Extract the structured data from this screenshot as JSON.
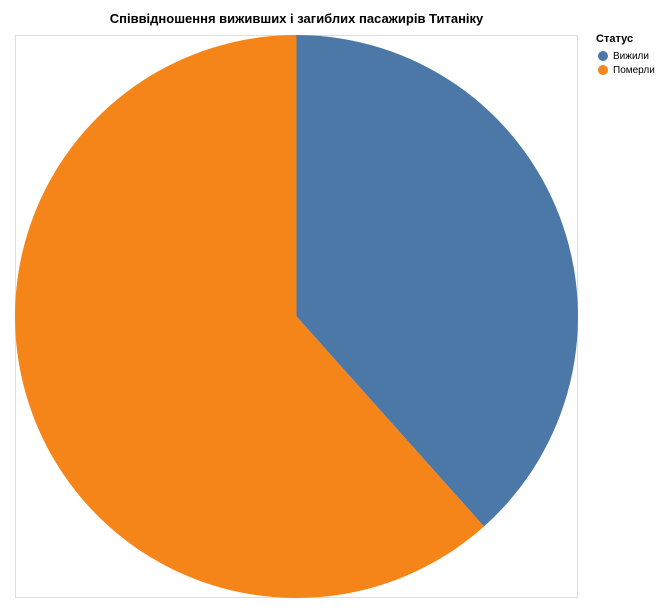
{
  "chart_data": {
    "type": "pie",
    "title": "Співвідношення виживших і загиблих пасажирів Титаніку",
    "legend_title": "Статус",
    "legend_placement": "top-right",
    "categories": [
      "Вижили",
      "Померли"
    ],
    "values": [
      38.4,
      61.6
    ],
    "colors": [
      "#4c78a8",
      "#f58518"
    ],
    "start_angle_deg": 0,
    "direction": "clockwise"
  }
}
